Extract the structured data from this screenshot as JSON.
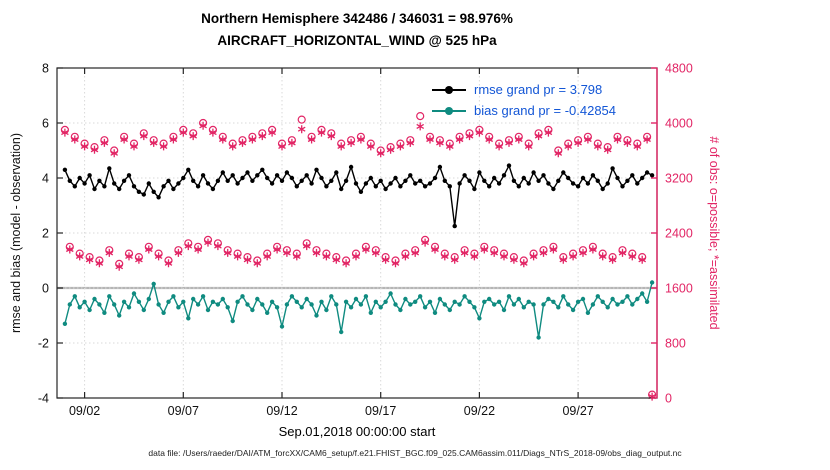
{
  "title_line1": "Northern Hemisphere 342486 / 346031 = 98.976%",
  "title_line2": "AIRCRAFT_HORIZONTAL_WIND @ 525 hPa",
  "caption": "data file: /Users/raeder/DAI/ATM_forcXX/CAM6_setup/f.e21.FHIST_BGC.f09_025.CAM6assim.011/Diags_NTrS_2018-09/obs_diag_output.nc",
  "colors": {
    "obs_pink": "#e22565",
    "rmse_black": "#000000",
    "bias_teal": "#0f8b80",
    "legend_text_blue": "#1356d6",
    "grid_gray": "#d9d9d9",
    "zero_line_gray": "#b5b5b5",
    "axis_dark": "#262626"
  },
  "chart_data": {
    "type": "line",
    "title": "Northern Hemisphere 342486 / 346031 = 98.976% | AIRCRAFT_HORIZONTAL_WIND @ 525 hPa",
    "xlabel": "Sep.01,2018 00:00:00 start",
    "ylabel_left": "rmse and bias (model - observation)",
    "ylabel_right": "# of obs: o=possible; *=assimilated",
    "x_tick_days": [
      2,
      7,
      12,
      17,
      22,
      27
    ],
    "x_tick_labels": [
      "09/02",
      "09/07",
      "09/12",
      "09/17",
      "09/22",
      "09/27"
    ],
    "y_left_ticks": [
      -4,
      -2,
      0,
      2,
      4,
      6,
      8
    ],
    "y_left_range": [
      -4,
      8
    ],
    "y_right_ticks": [
      0,
      800,
      1600,
      2400,
      3200,
      4000,
      4800
    ],
    "y_right_range": [
      0,
      4800
    ],
    "x_range_days": [
      0.6,
      31.0
    ],
    "x_start_day": 1.0,
    "x_step_days": 0.25,
    "grid": true,
    "legend_position": "top-right-inside",
    "legend": [
      {
        "series": "rmse",
        "label": "rmse grand pr = 3.798"
      },
      {
        "series": "bias",
        "label": "bias grand pr = -0.42854"
      }
    ],
    "rmse_grand_mean": 3.798,
    "bias_grand_mean": -0.42854,
    "series": [
      {
        "name": "rmse",
        "axis": "left",
        "style": "line+dot",
        "values": [
          4.3,
          3.9,
          3.7,
          4.0,
          3.8,
          4.1,
          3.6,
          3.9,
          3.7,
          4.35,
          3.8,
          3.6,
          3.9,
          4.1,
          3.7,
          3.5,
          3.4,
          3.8,
          3.5,
          3.3,
          3.7,
          3.9,
          3.6,
          3.8,
          4.0,
          4.3,
          3.9,
          3.7,
          4.1,
          3.8,
          3.6,
          3.9,
          4.2,
          3.9,
          4.1,
          3.8,
          4.0,
          4.2,
          3.9,
          4.1,
          4.3,
          4.0,
          3.8,
          4.1,
          3.9,
          4.2,
          4.0,
          3.7,
          3.9,
          4.1,
          3.8,
          4.3,
          4.0,
          3.7,
          3.9,
          4.2,
          3.6,
          3.9,
          4.4,
          3.8,
          3.5,
          3.8,
          4.0,
          3.7,
          3.9,
          3.6,
          3.8,
          4.0,
          3.7,
          3.9,
          4.1,
          3.8,
          3.9,
          3.7,
          3.8,
          4.0,
          4.4,
          3.9,
          3.7,
          2.25,
          3.8,
          4.1,
          3.9,
          3.6,
          4.2,
          3.9,
          3.7,
          4.0,
          3.8,
          4.1,
          4.45,
          3.9,
          3.7,
          4.0,
          3.8,
          4.2,
          3.9,
          4.1,
          3.8,
          3.6,
          3.9,
          4.2,
          4.0,
          3.8,
          3.7,
          4.0,
          3.8,
          4.1,
          3.9,
          3.6,
          3.8,
          4.35,
          4.0,
          3.7,
          3.9,
          4.1,
          3.8,
          4.0,
          4.2,
          4.1
        ]
      },
      {
        "name": "bias",
        "axis": "left",
        "style": "line+dot",
        "values": [
          -1.3,
          -0.6,
          -0.3,
          -0.7,
          -0.5,
          -0.8,
          -0.4,
          -0.6,
          -0.9,
          -0.3,
          -0.6,
          -1.0,
          -0.5,
          -0.7,
          -0.2,
          -0.5,
          -0.8,
          -0.4,
          0.15,
          -0.6,
          -0.9,
          -0.5,
          -0.3,
          -0.7,
          -0.5,
          -1.1,
          -0.4,
          -0.6,
          -0.3,
          -0.8,
          -0.5,
          -0.6,
          -0.4,
          -0.7,
          -1.2,
          -0.5,
          -0.3,
          -0.6,
          -0.8,
          -0.4,
          -0.6,
          -0.9,
          -0.5,
          -0.7,
          -1.4,
          -0.6,
          -0.3,
          -0.5,
          -0.7,
          -0.4,
          -0.6,
          -1.0,
          -0.5,
          -0.8,
          -0.3,
          -0.6,
          -1.6,
          -0.5,
          -0.7,
          -0.4,
          -0.6,
          -0.3,
          -0.9,
          -0.5,
          -0.7,
          -0.5,
          -0.2,
          -0.6,
          -0.8,
          -0.4,
          -0.6,
          -0.5,
          -0.3,
          -0.7,
          -0.5,
          -0.9,
          -0.4,
          -0.6,
          -0.8,
          -0.5,
          -0.6,
          -0.3,
          -0.5,
          -0.7,
          -1.1,
          -0.5,
          -0.4,
          -0.6,
          -0.5,
          -0.8,
          -0.3,
          -0.6,
          -0.4,
          -0.7,
          -0.5,
          -0.6,
          -1.8,
          -0.6,
          -0.4,
          -0.5,
          -0.7,
          -0.3,
          -0.6,
          -0.8,
          -0.5,
          -0.4,
          -0.9,
          -0.6,
          -0.3,
          -0.5,
          -0.7,
          -0.4,
          -0.6,
          -0.5,
          -0.3,
          -0.6,
          -0.4,
          -0.2,
          -0.5,
          0.2
        ]
      },
      {
        "name": "possible",
        "axis": "right",
        "style": "circle",
        "values": [
          3900,
          2200,
          3800,
          2100,
          3700,
          2050,
          3650,
          2000,
          3750,
          2150,
          3600,
          1950,
          3800,
          2100,
          3700,
          2050,
          3850,
          2200,
          3750,
          2100,
          3700,
          2000,
          3800,
          2150,
          3900,
          2250,
          3850,
          2200,
          4000,
          2300,
          3900,
          2250,
          3800,
          2150,
          3700,
          2100,
          3750,
          2050,
          3800,
          2000,
          3850,
          2100,
          3900,
          2200,
          3700,
          2150,
          3750,
          2100,
          4050,
          2250,
          3800,
          2150,
          3900,
          2100,
          3850,
          2050,
          3700,
          2000,
          3750,
          2100,
          3800,
          2200,
          3700,
          2150,
          3600,
          2050,
          3650,
          2000,
          3700,
          2100,
          3750,
          2150,
          4100,
          2300,
          3800,
          2200,
          3750,
          2100,
          3700,
          2050,
          3800,
          2150,
          3850,
          2100,
          3900,
          2200,
          3800,
          2150,
          3700,
          2100,
          3750,
          2050,
          3800,
          2000,
          3700,
          2100,
          3850,
          2150,
          3900,
          2200,
          3600,
          2050,
          3700,
          2100,
          3750,
          2150,
          3800,
          2200,
          3700,
          2100,
          3650,
          2050,
          3800,
          2150,
          3750,
          2100,
          3700,
          2050,
          3800,
          50
        ]
      },
      {
        "name": "assimilated",
        "axis": "right",
        "style": "asterisk",
        "values": [
          3860,
          2160,
          3760,
          2060,
          3660,
          2010,
          3610,
          1960,
          3710,
          2110,
          3560,
          1910,
          3760,
          2060,
          3660,
          2010,
          3810,
          2160,
          3710,
          2060,
          3660,
          1960,
          3760,
          2110,
          3860,
          2210,
          3810,
          2160,
          3960,
          2260,
          3860,
          2210,
          3760,
          2110,
          3660,
          2060,
          3710,
          2010,
          3760,
          1960,
          3810,
          2060,
          3860,
          2160,
          3660,
          2110,
          3710,
          2060,
          3910,
          2210,
          3760,
          2110,
          3860,
          2060,
          3810,
          2010,
          3660,
          1960,
          3710,
          2060,
          3760,
          2160,
          3660,
          2110,
          3560,
          2010,
          3610,
          1960,
          3660,
          2060,
          3710,
          2110,
          3950,
          2260,
          3760,
          2160,
          3710,
          2060,
          3660,
          2010,
          3760,
          2110,
          3810,
          2060,
          3860,
          2160,
          3760,
          2110,
          3660,
          2060,
          3710,
          2010,
          3760,
          1960,
          3660,
          2060,
          3810,
          2110,
          3860,
          2160,
          3560,
          2010,
          3660,
          2060,
          3710,
          2110,
          3760,
          2160,
          3660,
          2060,
          3610,
          2010,
          3760,
          2110,
          3710,
          2060,
          3660,
          2010,
          3760,
          20
        ]
      }
    ]
  }
}
